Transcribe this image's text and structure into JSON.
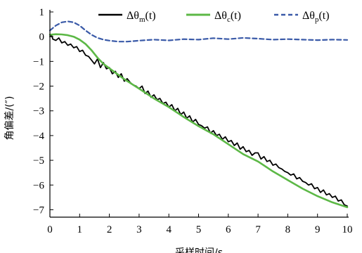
{
  "chart_data": {
    "type": "line",
    "xlabel": "采样时间/s",
    "ylabel": "角偏差/(″)",
    "xlim": [
      0,
      10
    ],
    "ylim": [
      -7.3,
      1
    ],
    "xticks": [
      "0",
      "1",
      "2",
      "3",
      "4",
      "5",
      "6",
      "7",
      "8",
      "9",
      "10"
    ],
    "yticks": [
      "1",
      "0",
      "−1",
      "−2",
      "−3",
      "−4",
      "−5",
      "−6",
      "−7"
    ],
    "grid": false,
    "legend_position": "top",
    "series": [
      {
        "name": "Δθm(t)",
        "legend": {
          "symbol": "Δθ",
          "sub": "m",
          "suffix": "(t)"
        },
        "color": "#000000",
        "style": "solid",
        "x": [
          0,
          0.05,
          0.1,
          0.2,
          0.3,
          0.4,
          0.5,
          0.6,
          0.7,
          0.8,
          0.9,
          1.0,
          1.1,
          1.2,
          1.3,
          1.4,
          1.5,
          1.6,
          1.7,
          1.8,
          1.9,
          2.0,
          2.1,
          2.2,
          2.3,
          2.4,
          2.5,
          2.6,
          2.7,
          2.8,
          2.9,
          3.0,
          3.1,
          3.2,
          3.3,
          3.4,
          3.5,
          3.6,
          3.7,
          3.8,
          3.9,
          4.0,
          4.1,
          4.2,
          4.3,
          4.4,
          4.5,
          4.6,
          4.7,
          4.8,
          4.9,
          5.0,
          5.1,
          5.2,
          5.3,
          5.4,
          5.5,
          5.6,
          5.7,
          5.8,
          5.9,
          6.0,
          6.1,
          6.2,
          6.3,
          6.4,
          6.5,
          6.6,
          6.7,
          6.8,
          6.9,
          7.0,
          7.1,
          7.2,
          7.3,
          7.4,
          7.5,
          7.6,
          7.7,
          7.8,
          7.9,
          8.0,
          8.1,
          8.2,
          8.3,
          8.4,
          8.5,
          8.6,
          8.7,
          8.8,
          8.9,
          9.0,
          9.1,
          9.2,
          9.3,
          9.4,
          9.5,
          9.6,
          9.7,
          9.8,
          9.9,
          10.0
        ],
        "values": [
          0.0,
          0.08,
          -0.1,
          -0.15,
          -0.05,
          -0.25,
          -0.2,
          -0.35,
          -0.3,
          -0.45,
          -0.4,
          -0.6,
          -0.55,
          -0.75,
          -0.8,
          -0.95,
          -1.1,
          -0.9,
          -1.25,
          -1.05,
          -1.3,
          -1.25,
          -1.5,
          -1.4,
          -1.65,
          -1.5,
          -1.8,
          -1.7,
          -1.85,
          -1.95,
          -2.0,
          -2.1,
          -2.0,
          -2.3,
          -2.2,
          -2.45,
          -2.35,
          -2.55,
          -2.5,
          -2.7,
          -2.65,
          -2.85,
          -2.75,
          -3.0,
          -2.9,
          -3.15,
          -3.05,
          -3.3,
          -3.2,
          -3.45,
          -3.35,
          -3.55,
          -3.6,
          -3.7,
          -3.65,
          -3.9,
          -3.8,
          -4.0,
          -3.95,
          -4.15,
          -4.05,
          -4.25,
          -4.2,
          -4.4,
          -4.3,
          -4.55,
          -4.45,
          -4.65,
          -4.6,
          -4.8,
          -4.7,
          -4.7,
          -4.95,
          -4.85,
          -5.05,
          -5.0,
          -5.2,
          -5.15,
          -5.3,
          -5.35,
          -5.45,
          -5.5,
          -5.6,
          -5.55,
          -5.75,
          -5.7,
          -5.85,
          -5.9,
          -6.0,
          -5.95,
          -6.15,
          -6.1,
          -6.3,
          -6.2,
          -6.4,
          -6.35,
          -6.5,
          -6.45,
          -6.65,
          -6.6,
          -6.8,
          -6.85
        ]
      },
      {
        "name": "Δθc(t)",
        "legend": {
          "symbol": "Δθ",
          "sub": "c",
          "suffix": "(t)"
        },
        "color": "#5cb846",
        "style": "solid",
        "x": [
          0,
          0.2,
          0.4,
          0.6,
          0.8,
          1.0,
          1.2,
          1.4,
          1.6,
          1.8,
          2.0,
          2.5,
          3.0,
          3.5,
          4.0,
          4.5,
          5.0,
          5.5,
          6.0,
          6.5,
          7.0,
          7.5,
          8.0,
          8.5,
          9.0,
          9.5,
          10.0
        ],
        "values": [
          0.08,
          0.1,
          0.09,
          0.06,
          0.0,
          -0.12,
          -0.3,
          -0.55,
          -0.85,
          -1.1,
          -1.28,
          -1.72,
          -2.1,
          -2.5,
          -2.85,
          -3.25,
          -3.62,
          -3.95,
          -4.35,
          -4.75,
          -5.05,
          -5.45,
          -5.8,
          -6.15,
          -6.45,
          -6.7,
          -6.9
        ]
      },
      {
        "name": "Δθp(t)",
        "legend": {
          "symbol": "Δθ",
          "sub": "p",
          "suffix": "(t)"
        },
        "color": "#3a5aa8",
        "style": "dashed",
        "x": [
          0,
          0.2,
          0.4,
          0.6,
          0.8,
          1.0,
          1.2,
          1.4,
          1.6,
          1.8,
          2.0,
          2.3,
          2.6,
          3.0,
          3.5,
          4.0,
          4.5,
          5.0,
          5.5,
          6.0,
          6.5,
          7.0,
          7.5,
          8.0,
          8.5,
          9.0,
          9.5,
          10.0
        ],
        "values": [
          0.25,
          0.45,
          0.58,
          0.62,
          0.58,
          0.45,
          0.25,
          0.08,
          -0.05,
          -0.12,
          -0.16,
          -0.2,
          -0.2,
          -0.16,
          -0.12,
          -0.15,
          -0.1,
          -0.12,
          -0.06,
          -0.1,
          -0.05,
          -0.08,
          -0.12,
          -0.1,
          -0.12,
          -0.14,
          -0.12,
          -0.13
        ]
      }
    ]
  }
}
